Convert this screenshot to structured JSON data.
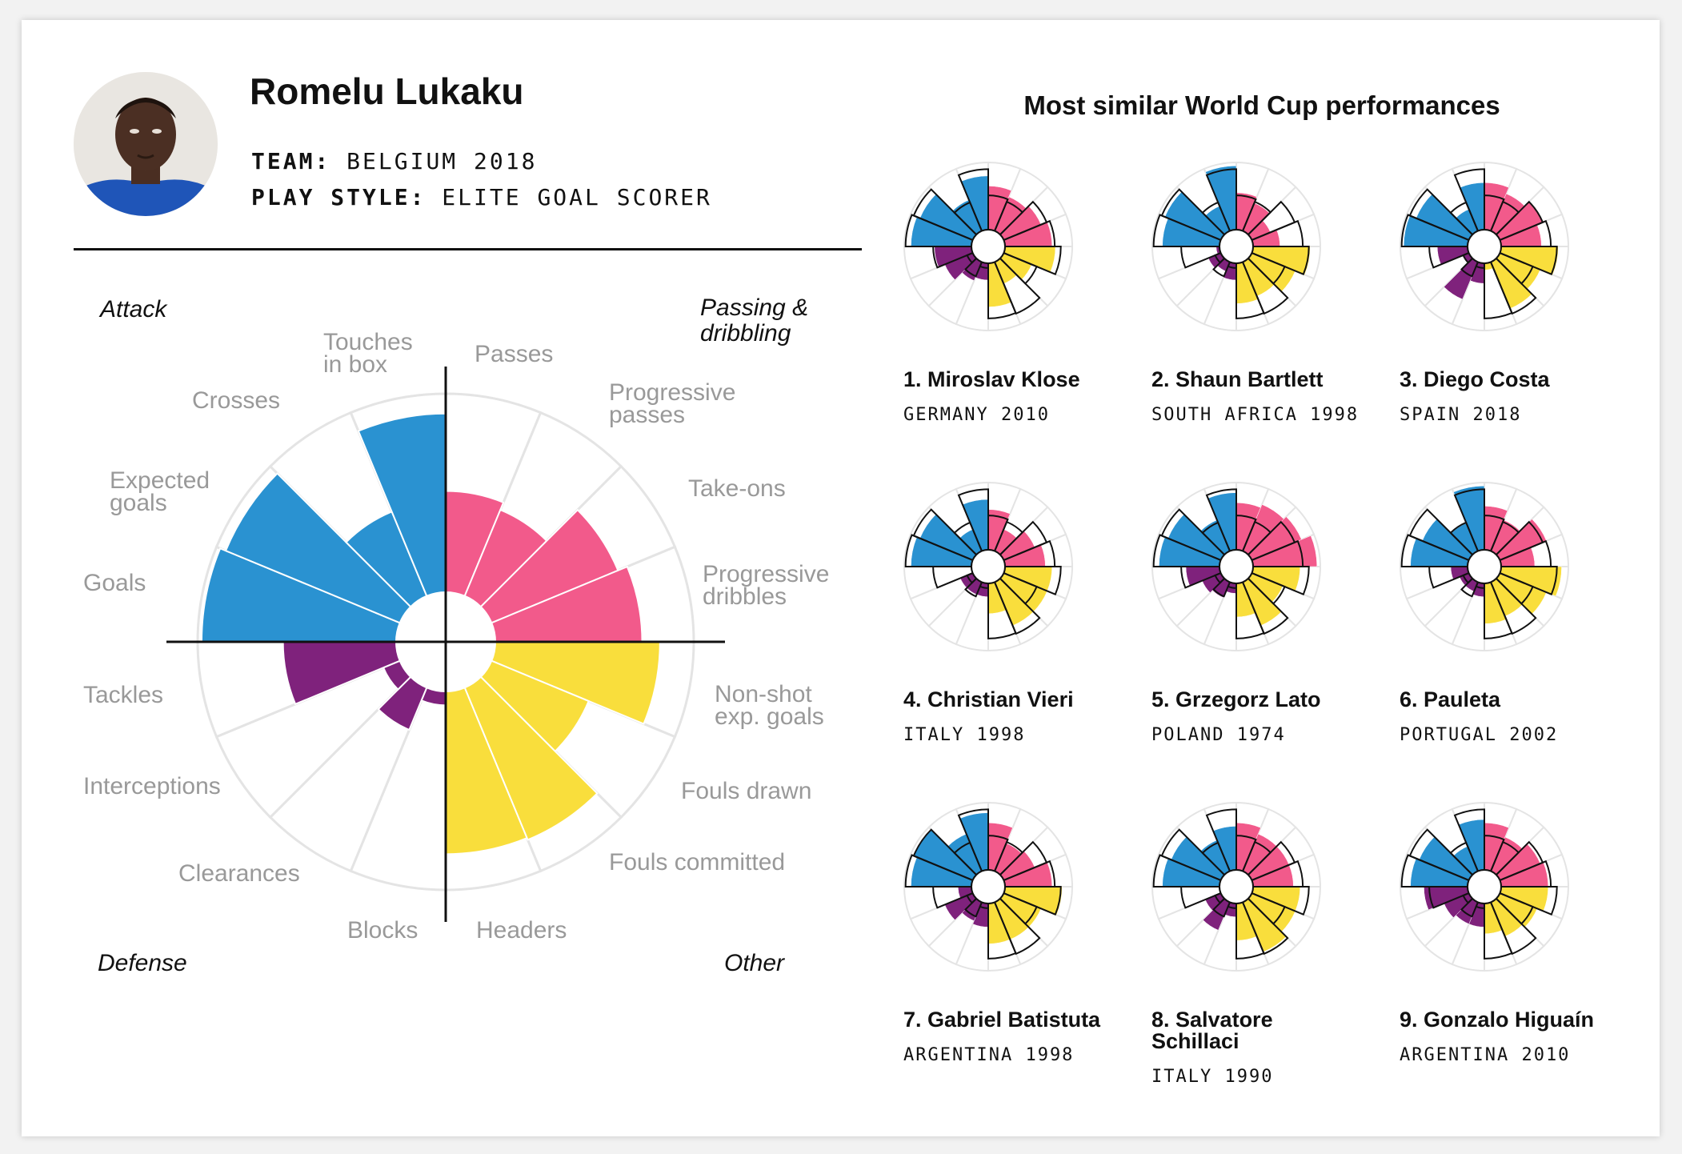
{
  "player": {
    "name": "Romelu Lukaku",
    "team_key": "TEAM:",
    "team": "BELGIUM 2018",
    "style_key": "PLAY STYLE:",
    "style": "ELITE GOAL SCORER"
  },
  "similar_title": "Most similar World Cup performances",
  "colors": {
    "attack": "#2a92d1",
    "passing": "#f25a8b",
    "other": "#f9de3c",
    "defense": "#7f227c",
    "grid": "#e4e4e4",
    "label": "#999999",
    "axis": "#111111"
  },
  "chart_data": {
    "type": "polar-area",
    "quadrant_labels": {
      "attack": "Attack",
      "passing": "Passing & dribbling",
      "other": "Other",
      "defense": "Defense"
    },
    "categories": [
      {
        "label": "Passes",
        "group": "passing",
        "value": 0.51
      },
      {
        "label": "Progressive passes",
        "group": "passing",
        "value": 0.47
      },
      {
        "label": "Take-ons",
        "group": "passing",
        "value": 0.69
      },
      {
        "label": "Progressive dribbles",
        "group": "passing",
        "value": 0.74
      },
      {
        "label": "Non-shot exp. goals",
        "group": "other",
        "value": 0.83
      },
      {
        "label": "Fouls drawn",
        "group": "other",
        "value": 0.53
      },
      {
        "label": "Fouls committed",
        "group": "other",
        "value": 0.83
      },
      {
        "label": "Headers",
        "group": "other",
        "value": 0.82
      },
      {
        "label": "Blocks",
        "group": "defense",
        "value": 0.07
      },
      {
        "label": "Clearances",
        "group": "defense",
        "value": 0.23
      },
      {
        "label": "Interceptions",
        "group": "defense",
        "value": 0.09
      },
      {
        "label": "Tackles",
        "group": "defense",
        "value": 0.57
      },
      {
        "label": "Goals",
        "group": "attack",
        "value": 0.98
      },
      {
        "label": "Expected goals",
        "group": "attack",
        "value": 0.95
      },
      {
        "label": "Crosses",
        "group": "attack",
        "value": 0.46
      },
      {
        "label": "Touches in box",
        "group": "attack",
        "value": 0.9
      }
    ],
    "similar": [
      {
        "rank_name": "1. Miroslav Klose",
        "team_year": "GERMANY 2010",
        "values": [
          0.65,
          0.55,
          0.6,
          0.7,
          0.75,
          0.45,
          0.35,
          0.65,
          0.25,
          0.3,
          0.45,
          0.55,
          0.9,
          0.85,
          0.5,
          0.8
        ]
      },
      {
        "rank_name": "2. Shaun Bartlett",
        "team_year": "SOUTH AFRICA 1998",
        "values": [
          0.55,
          0.45,
          0.3,
          0.4,
          0.85,
          0.7,
          0.55,
          0.6,
          0.25,
          0.15,
          0.2,
          0.05,
          0.85,
          0.9,
          0.4,
          0.95
        ]
      },
      {
        "rank_name": "3. Diego Costa",
        "team_year": "SPAIN 2018",
        "values": [
          0.7,
          0.6,
          0.7,
          0.6,
          0.85,
          0.65,
          0.75,
          0.1,
          0.3,
          0.6,
          0.1,
          0.45,
          0.95,
          0.85,
          0.35,
          0.7
        ]
      },
      {
        "rank_name": "4. Christian Vieri",
        "team_year": "ITALY 1998",
        "values": [
          0.6,
          0.35,
          0.5,
          0.6,
          0.7,
          0.7,
          0.7,
          0.45,
          0.2,
          0.2,
          0.2,
          0.0,
          0.9,
          0.85,
          0.35,
          0.75
        ]
      },
      {
        "rank_name": "5. Grzegorz Lato",
        "team_year": "POLAND 1974",
        "values": [
          0.7,
          0.75,
          0.8,
          0.95,
          0.7,
          0.5,
          0.7,
          0.5,
          0.15,
          0.25,
          0.3,
          0.5,
          0.9,
          0.85,
          0.5,
          0.85
        ]
      },
      {
        "rank_name": "6. Pauleta",
        "team_year": "PORTUGAL 2002",
        "values": [
          0.65,
          0.5,
          0.75,
          0.5,
          0.9,
          0.75,
          0.55,
          0.6,
          0.2,
          0.15,
          0.15,
          0.25,
          0.85,
          0.75,
          0.45,
          0.95
        ]
      },
      {
        "rank_name": "7. Gabriel Batistuta",
        "team_year": "ARGENTINA 1998",
        "values": [
          0.7,
          0.45,
          0.5,
          0.7,
          0.85,
          0.6,
          0.6,
          0.6,
          0.35,
          0.3,
          0.45,
          0.2,
          0.9,
          0.95,
          0.6,
          0.85
        ]
      },
      {
        "rank_name": "8. Salvatore Schillaci",
        "team_year": "ITALY 1990",
        "values": [
          0.7,
          0.6,
          0.6,
          0.6,
          0.7,
          0.7,
          0.8,
          0.55,
          0.2,
          0.45,
          0.25,
          0.0,
          0.85,
          0.8,
          0.5,
          0.65
        ]
      },
      {
        "rank_name": "9. Gonzalo Higuaín",
        "team_year": "ARGENTINA 2010",
        "values": [
          0.7,
          0.55,
          0.65,
          0.7,
          0.7,
          0.6,
          0.55,
          0.45,
          0.35,
          0.35,
          0.4,
          0.65,
          0.85,
          0.8,
          0.4,
          0.75
        ]
      }
    ]
  }
}
